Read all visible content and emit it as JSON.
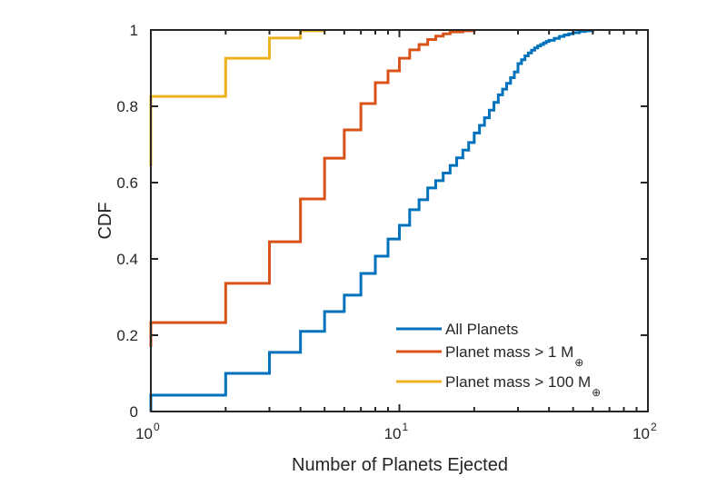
{
  "chart_data": {
    "type": "line",
    "step": true,
    "xlabel": "Number of Planets Ejected",
    "ylabel": "CDF",
    "xscale": "log",
    "xlim": [
      1,
      100
    ],
    "ylim": [
      0,
      1
    ],
    "x_tick_labels": [
      {
        "base": "10",
        "exp": "0"
      },
      {
        "base": "10",
        "exp": "1"
      },
      {
        "base": "10",
        "exp": "2"
      }
    ],
    "x_ticks": [
      1,
      10,
      100
    ],
    "y_ticks": [
      0,
      0.2,
      0.4,
      0.6,
      0.8,
      1
    ],
    "y_tick_labels": [
      "0",
      "0.2",
      "0.4",
      "0.6",
      "0.8",
      "1"
    ],
    "grid": false,
    "legend_position": "bottom-right",
    "series": [
      {
        "name": "All Planets",
        "legend_main": "All Planets",
        "legend_sub": "",
        "color": "#0072BD",
        "start_y": 0,
        "x": [
          1,
          2,
          3,
          4,
          5,
          6,
          7,
          8,
          9,
          10,
          11,
          12,
          13,
          14,
          15,
          16,
          17,
          18,
          19,
          20,
          21,
          22,
          23,
          24,
          25,
          26,
          27,
          28,
          29,
          30,
          31,
          32,
          33,
          34,
          35,
          36,
          37,
          38,
          39,
          40,
          42,
          44,
          46,
          48,
          50,
          53,
          56,
          60
        ],
        "y": [
          0.043,
          0.1,
          0.155,
          0.21,
          0.262,
          0.305,
          0.362,
          0.407,
          0.452,
          0.488,
          0.529,
          0.555,
          0.586,
          0.605,
          0.625,
          0.645,
          0.665,
          0.685,
          0.705,
          0.73,
          0.75,
          0.77,
          0.79,
          0.81,
          0.83,
          0.845,
          0.86,
          0.875,
          0.89,
          0.912,
          0.922,
          0.932,
          0.94,
          0.947,
          0.953,
          0.958,
          0.962,
          0.966,
          0.97,
          0.973,
          0.978,
          0.983,
          0.987,
          0.99,
          0.993,
          0.996,
          0.998,
          1.0
        ]
      },
      {
        "name": "Planet mass > 1 M⊕",
        "legend_main": "Planet mass > 1 M",
        "legend_sub": "⊕",
        "color": "#D95319",
        "start_y": 0.169,
        "x": [
          1,
          2,
          3,
          4,
          5,
          6,
          7,
          8,
          9,
          10,
          11,
          12,
          13,
          14,
          15,
          16,
          18,
          20
        ],
        "y": [
          0.233,
          0.336,
          0.445,
          0.557,
          0.664,
          0.738,
          0.807,
          0.862,
          0.893,
          0.926,
          0.948,
          0.962,
          0.975,
          0.984,
          0.99,
          0.995,
          0.998,
          1.0
        ]
      },
      {
        "name": "Planet mass > 100 M⊕",
        "legend_main": "Planet mass > 100 M",
        "legend_sub": "⊕",
        "color": "#EDB120",
        "start_y": 0.643,
        "x": [
          1,
          2,
          3,
          4,
          5
        ],
        "y": [
          0.826,
          0.926,
          0.979,
          0.998,
          1.0
        ]
      }
    ]
  }
}
